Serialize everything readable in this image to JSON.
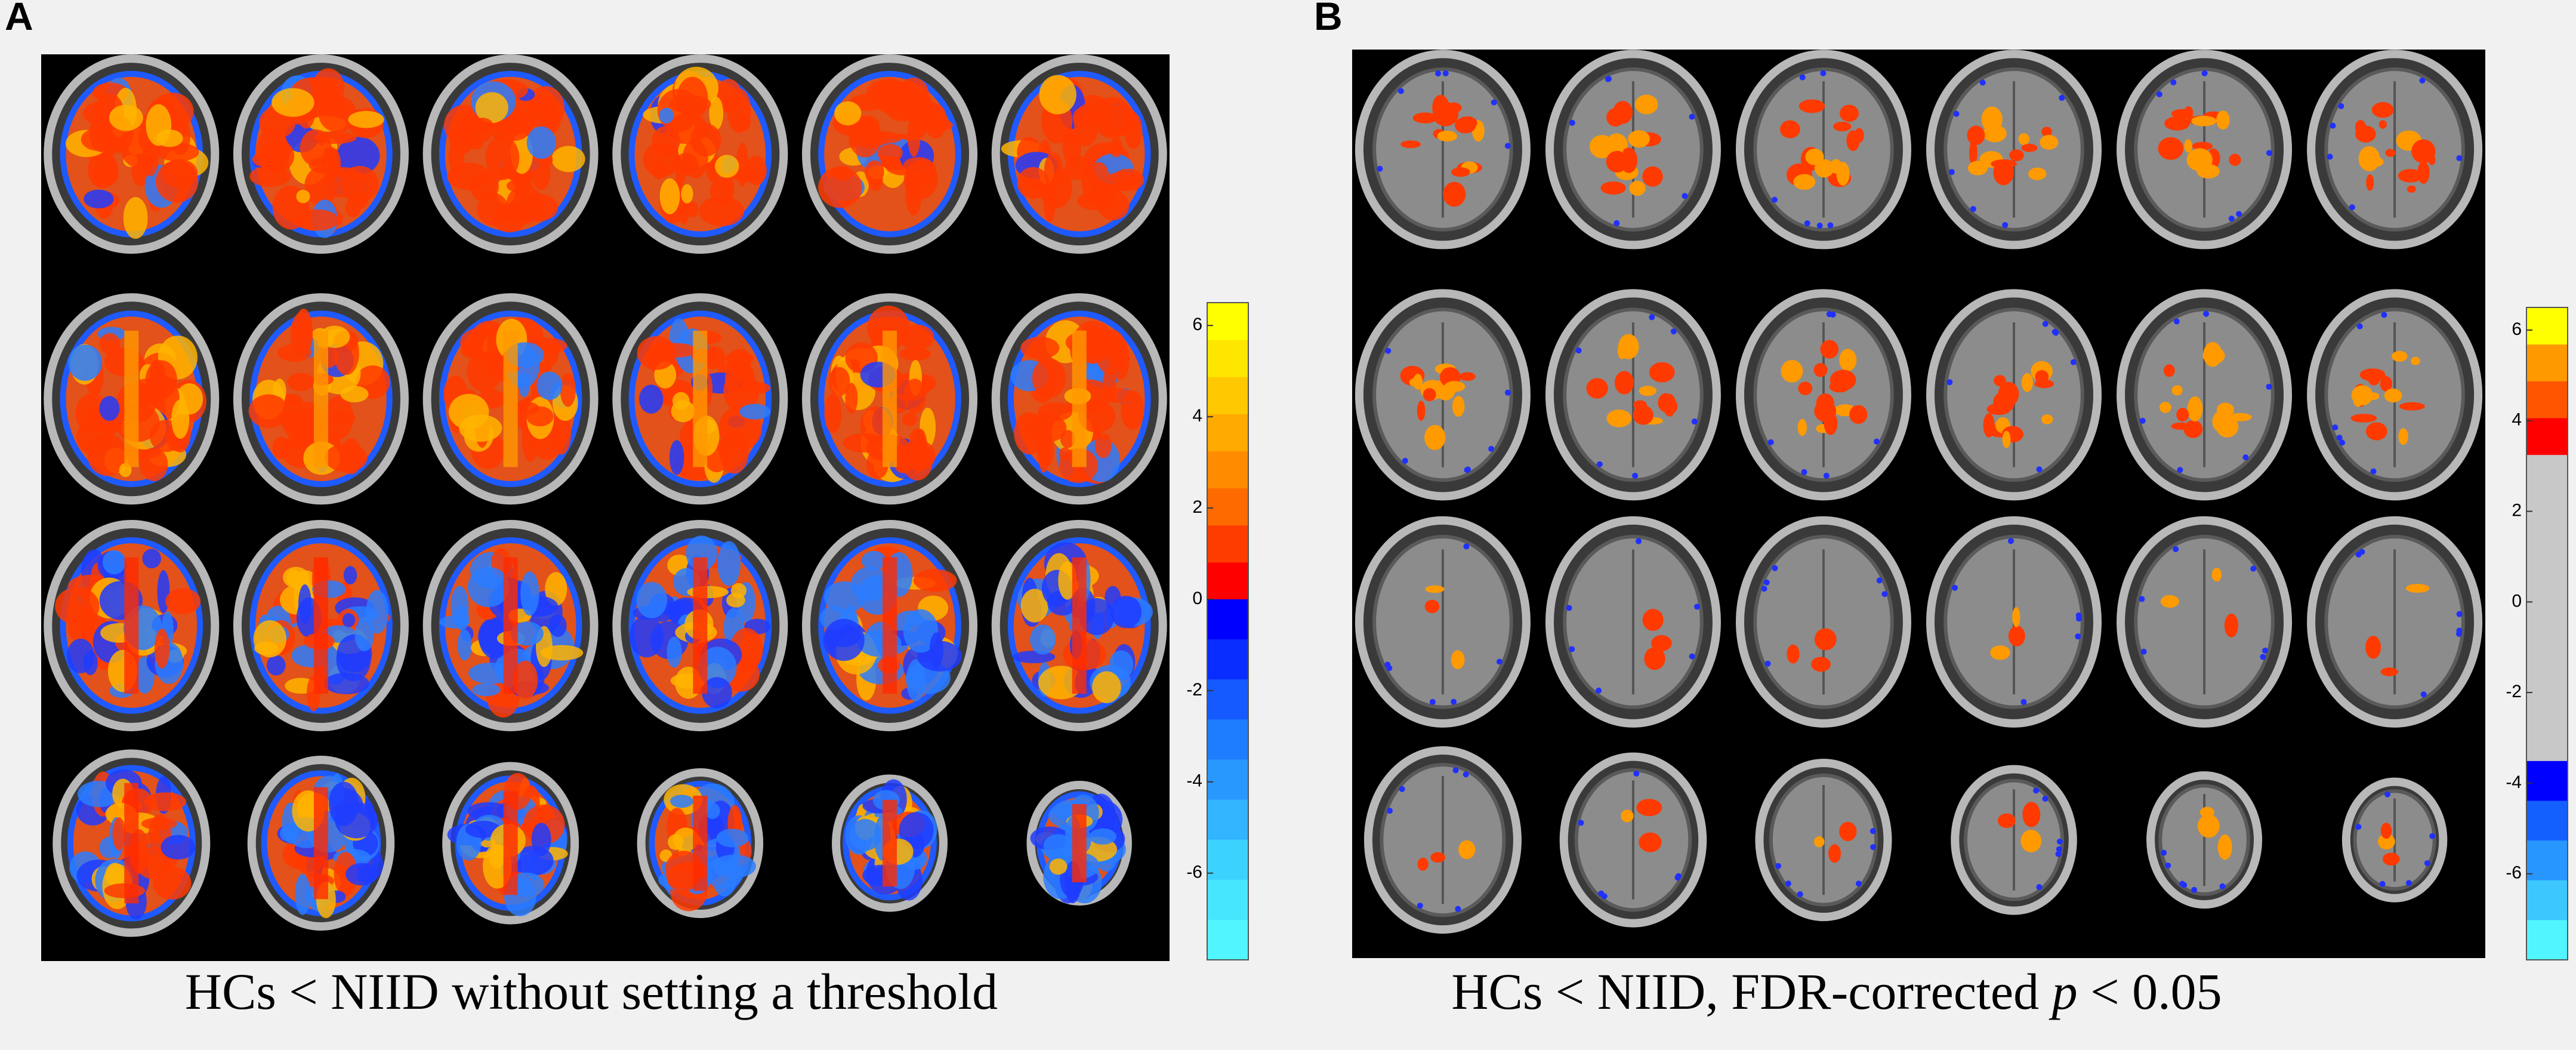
{
  "panels": [
    {
      "label": "A",
      "caption": [
        "HCs < NIID without setting a threshold"
      ],
      "colorbar": {
        "lim": [
          -7.9,
          6.5
        ],
        "ticks": [
          6,
          4,
          2,
          0,
          -2,
          -4,
          -6
        ],
        "positive_colors": [
          "#ff0000",
          "#ff3c00",
          "#ff6a00",
          "#ff8c00",
          "#ffaa00",
          "#ffc800",
          "#ffe600",
          "#ffff00"
        ],
        "negative_colors": [
          "#0000ff",
          "#0a2dff",
          "#145aff",
          "#1e7dff",
          "#2898ff",
          "#32b4ff",
          "#3cd2ff",
          "#46e6ff",
          "#50f5ff"
        ]
      }
    },
    {
      "label": "B",
      "caption": [
        "HCs < NIID, FDR-corrected ",
        "p",
        " < 0.05"
      ],
      "colorbar": {
        "lim": [
          -7.9,
          6.5
        ],
        "ticks": [
          6,
          4,
          2,
          0,
          -2,
          -4,
          -6
        ],
        "positive_colors": [
          "#c8c8c8",
          "#c8c8c8",
          "#c8c8c8",
          "#c8c8c8",
          "#ff0000",
          "#ff5500",
          "#ff9900",
          "#ffff00"
        ],
        "negative_colors": [
          "#c8c8c8",
          "#c8c8c8",
          "#c8c8c8",
          "#c8c8c8",
          "#0000ff",
          "#1460ff",
          "#2896ff",
          "#3cc8ff",
          "#50f5ff"
        ]
      }
    }
  ]
}
